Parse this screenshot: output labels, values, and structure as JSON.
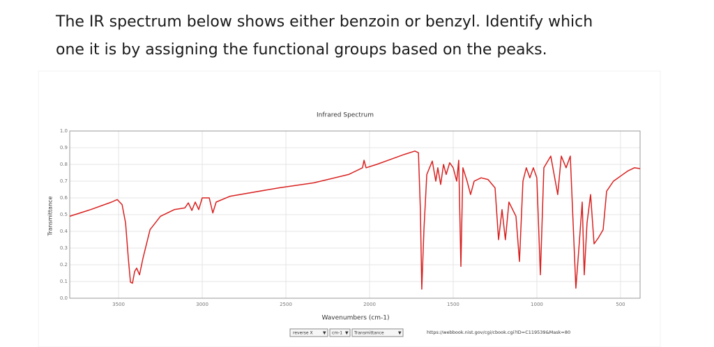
{
  "question": [
    "The IR spectrum below shows either benzoin or benzyl. Identify which",
    "one it is by assigning the functional groups based on the peaks."
  ],
  "chart_data": {
    "type": "line",
    "title": "Infrared Spectrum",
    "xlabel": "Wavenumbers (cm-1)",
    "ylabel": "Transmittance",
    "x": [
      3792,
      3667,
      3542,
      3508,
      3479,
      3458,
      3442,
      3429,
      3417,
      3404,
      3392,
      3375,
      3354,
      3312,
      3250,
      3167,
      3104,
      3083,
      3062,
      3042,
      3021,
      3000,
      2958,
      2937,
      2917,
      2833,
      2542,
      2333,
      2125,
      2042,
      2033,
      2021,
      1958,
      1875,
      1792,
      1729,
      1708,
      1696,
      1688,
      1675,
      1658,
      1625,
      1604,
      1592,
      1575,
      1558,
      1542,
      1521,
      1500,
      1479,
      1467,
      1454,
      1442,
      1417,
      1396,
      1375,
      1333,
      1292,
      1250,
      1229,
      1208,
      1188,
      1167,
      1125,
      1104,
      1083,
      1063,
      1042,
      1021,
      1000,
      979,
      958,
      917,
      875,
      854,
      825,
      800,
      767,
      750,
      729,
      717,
      700,
      679,
      658,
      633,
      604,
      583,
      542,
      500,
      458,
      417,
      383
    ],
    "series": [
      {
        "color": "#d8201f",
        "values": [
          0.49,
          0.53,
          0.575,
          0.59,
          0.56,
          0.45,
          0.24,
          0.096,
          0.09,
          0.16,
          0.18,
          0.14,
          0.24,
          0.41,
          0.49,
          0.53,
          0.54,
          0.57,
          0.525,
          0.575,
          0.53,
          0.6,
          0.6,
          0.51,
          0.575,
          0.61,
          0.66,
          0.69,
          0.74,
          0.78,
          0.825,
          0.78,
          0.8,
          0.83,
          0.86,
          0.88,
          0.87,
          0.53,
          0.054,
          0.41,
          0.74,
          0.82,
          0.7,
          0.78,
          0.68,
          0.8,
          0.74,
          0.81,
          0.78,
          0.7,
          0.825,
          0.19,
          0.78,
          0.7,
          0.62,
          0.7,
          0.72,
          0.71,
          0.66,
          0.35,
          0.53,
          0.35,
          0.575,
          0.49,
          0.22,
          0.7,
          0.78,
          0.72,
          0.78,
          0.72,
          0.14,
          0.78,
          0.85,
          0.62,
          0.85,
          0.78,
          0.85,
          0.06,
          0.28,
          0.575,
          0.14,
          0.45,
          0.62,
          0.325,
          0.36,
          0.41,
          0.64,
          0.7,
          0.73,
          0.76,
          0.78,
          0.775
        ]
      }
    ],
    "xlim": [
      3792,
      383
    ],
    "ylim": [
      0,
      1
    ],
    "xticks": [
      3500,
      3000,
      2500,
      2000,
      1500,
      1000,
      500
    ],
    "yticks": [
      {
        "value": 0,
        "label": "0.0"
      },
      0.1,
      0.2,
      0.3,
      0.4,
      0.5,
      0.6,
      0.7,
      0.8,
      0.9,
      {
        "value": 1,
        "label": "1.0"
      }
    ],
    "grid": true
  },
  "controls": [
    "reverse X",
    "cm-1",
    "Transmittance"
  ],
  "source_url": "https://webbook.nist.gov/cgi/cbook.cgi?ID=C119539&Mask=80"
}
